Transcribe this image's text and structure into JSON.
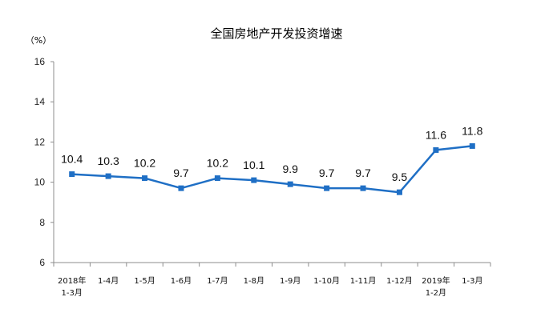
{
  "chart_data": {
    "type": "line",
    "title": "全国房地产开发投资增速",
    "ylabel": "（%）",
    "xlabel": "",
    "ylim": [
      6,
      16
    ],
    "yticks": [
      "6",
      "8",
      "10",
      "12",
      "14",
      "16"
    ],
    "categories": [
      [
        "2018年",
        "1-3月"
      ],
      [
        "1-4月"
      ],
      [
        "1-5月"
      ],
      [
        "1-6月"
      ],
      [
        "1-7月"
      ],
      [
        "1-8月"
      ],
      [
        "1-9月"
      ],
      [
        "1-10月"
      ],
      [
        "1-11月"
      ],
      [
        "1-12月"
      ],
      [
        "2019年",
        "1-2月"
      ],
      [
        "1-3月"
      ]
    ],
    "series": [
      {
        "values": [
          10.4,
          10.3,
          10.2,
          9.7,
          10.2,
          10.1,
          9.9,
          9.7,
          9.7,
          9.5,
          11.6,
          11.8
        ],
        "labels": [
          "10.4",
          "10.3",
          "10.2",
          "9.7",
          "10.2",
          "10.1",
          "9.9",
          "9.7",
          "9.7",
          "9.5",
          "11.6",
          "11.8"
        ],
        "color": "#1f6fc5"
      }
    ],
    "grid": false
  }
}
